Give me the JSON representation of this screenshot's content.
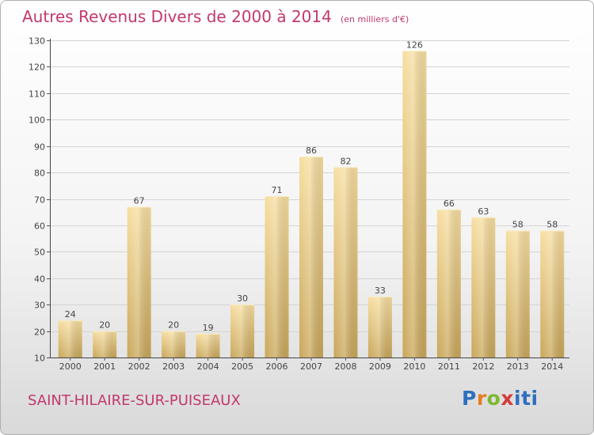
{
  "header": {
    "title": "Autres Revenus Divers de 2000 à 2014",
    "unit": "(en milliers d'€)"
  },
  "footer": {
    "city": "SAINT-HILAIRE-SUR-PUISEAUX",
    "logo_letters": [
      "P",
      "r",
      "o",
      "x",
      "iti"
    ],
    "logo_colors": [
      "#2e6fbf",
      "#e67e22",
      "#7cb82f",
      "#d63a3a",
      "#2e6fbf"
    ]
  },
  "chart_data": {
    "type": "bar",
    "title": "Autres Revenus Divers de 2000 à 2014",
    "subtitle": "(en milliers d'€)",
    "categories": [
      "2000",
      "2001",
      "2002",
      "2003",
      "2004",
      "2005",
      "2006",
      "2007",
      "2008",
      "2009",
      "2010",
      "2011",
      "2012",
      "2013",
      "2014"
    ],
    "values": [
      24,
      20,
      67,
      20,
      19,
      30,
      71,
      86,
      82,
      33,
      126,
      66,
      63,
      58,
      58
    ],
    "ylim": [
      10,
      130
    ],
    "yticks": [
      10,
      20,
      30,
      40,
      50,
      60,
      70,
      80,
      90,
      100,
      110,
      120,
      130
    ],
    "grid": true,
    "bar_color": "#e6c66e",
    "title_color": "#c2386e"
  }
}
